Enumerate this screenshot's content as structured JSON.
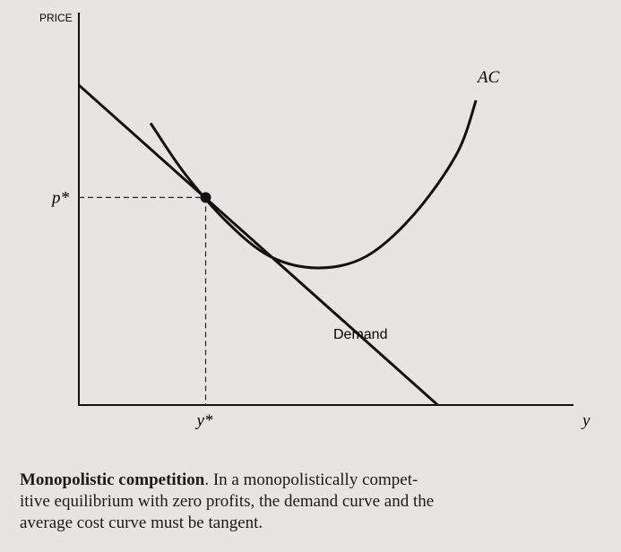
{
  "chart_data": {
    "type": "line",
    "title": "",
    "ylabel": "PRICE",
    "xlabel": "y",
    "x_tick_labels": [
      "y*"
    ],
    "y_tick_labels": [
      "p*"
    ],
    "xlim": [
      0,
      10
    ],
    "ylim": [
      0,
      10
    ],
    "grid": false,
    "series": [
      {
        "name": "AC",
        "points": [
          [
            1.5,
            7.4
          ],
          [
            2.2,
            6.1
          ],
          [
            3.1,
            4.8
          ],
          [
            4.0,
            3.9
          ],
          [
            5.0,
            3.6
          ],
          [
            6.0,
            3.9
          ],
          [
            7.0,
            5.0
          ],
          [
            7.9,
            6.6
          ],
          [
            8.3,
            8.0
          ]
        ]
      },
      {
        "name": "Demand",
        "points": [
          [
            0,
            8.4
          ],
          [
            7.5,
            0
          ]
        ]
      }
    ],
    "equilibrium": {
      "x": 2.65,
      "y": 5.45,
      "x_label": "y*",
      "y_label": "p*"
    }
  },
  "caption": {
    "title": "Monopolistic competition",
    "line1": "In a monopolistically compet-",
    "line2": "itive equilibrium with zero profits, the demand curve and the",
    "line3": "average cost curve must be tangent."
  }
}
